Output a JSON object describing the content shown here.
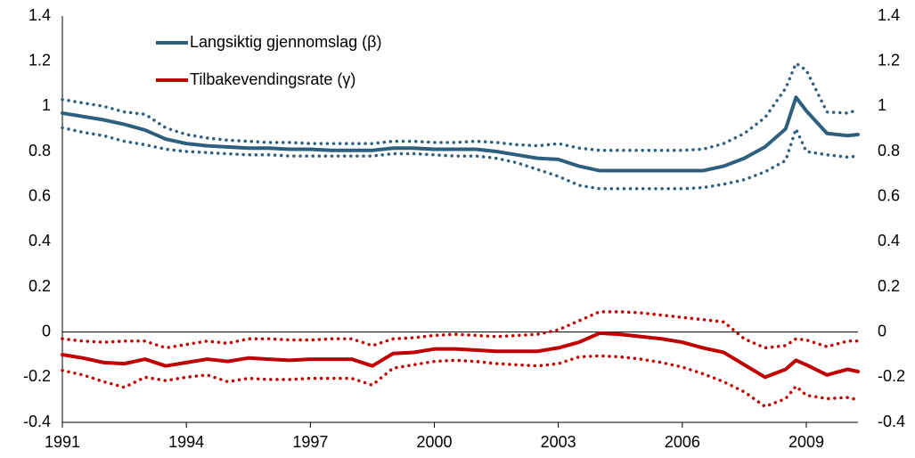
{
  "chart_data": {
    "type": "line",
    "x": [
      1991,
      1991.5,
      1992,
      1992.5,
      1993,
      1993.5,
      1994,
      1994.5,
      1995,
      1995.5,
      1996,
      1996.5,
      1997,
      1997.5,
      1998,
      1998.5,
      1999,
      1999.5,
      2000,
      2000.5,
      2001,
      2001.5,
      2002,
      2002.5,
      2003,
      2003.5,
      2004,
      2004.5,
      2005,
      2005.5,
      2006,
      2006.5,
      2007,
      2007.5,
      2008,
      2008.5,
      2008.75,
      2009,
      2009.5,
      2010,
      2010.25
    ],
    "series": [
      {
        "name": "Langsiktig gjennomslag (β)",
        "color": "#2e5f7f",
        "linestyle": "solid",
        "values": [
          0.97,
          0.955,
          0.94,
          0.92,
          0.895,
          0.855,
          0.835,
          0.825,
          0.82,
          0.815,
          0.815,
          0.81,
          0.81,
          0.805,
          0.805,
          0.805,
          0.815,
          0.815,
          0.81,
          0.81,
          0.81,
          0.8,
          0.785,
          0.77,
          0.765,
          0.735,
          0.715,
          0.715,
          0.715,
          0.715,
          0.715,
          0.715,
          0.735,
          0.77,
          0.82,
          0.9,
          1.04,
          0.98,
          0.88,
          0.87,
          0.875
        ]
      },
      {
        "color": "#2e5f7f",
        "linestyle": "dotted",
        "values": [
          1.03,
          1.015,
          1.0,
          0.975,
          0.965,
          0.905,
          0.875,
          0.86,
          0.85,
          0.845,
          0.84,
          0.84,
          0.835,
          0.835,
          0.835,
          0.835,
          0.845,
          0.845,
          0.84,
          0.84,
          0.845,
          0.84,
          0.83,
          0.825,
          0.835,
          0.815,
          0.805,
          0.805,
          0.805,
          0.805,
          0.805,
          0.81,
          0.835,
          0.88,
          0.95,
          1.08,
          1.19,
          1.16,
          0.975,
          0.97,
          0.985
        ]
      },
      {
        "color": "#2e5f7f",
        "linestyle": "dotted",
        "values": [
          0.905,
          0.885,
          0.87,
          0.845,
          0.83,
          0.81,
          0.8,
          0.795,
          0.79,
          0.785,
          0.785,
          0.78,
          0.78,
          0.78,
          0.78,
          0.78,
          0.79,
          0.79,
          0.785,
          0.78,
          0.78,
          0.77,
          0.75,
          0.72,
          0.69,
          0.65,
          0.635,
          0.635,
          0.635,
          0.635,
          0.635,
          0.64,
          0.655,
          0.675,
          0.71,
          0.76,
          0.9,
          0.8,
          0.785,
          0.775,
          0.78
        ]
      },
      {
        "name": "Tilbakevendingsrate (γ)",
        "color": "#c00000",
        "linestyle": "solid",
        "values": [
          -0.1,
          -0.115,
          -0.135,
          -0.14,
          -0.12,
          -0.15,
          -0.135,
          -0.12,
          -0.13,
          -0.115,
          -0.12,
          -0.125,
          -0.12,
          -0.12,
          -0.12,
          -0.15,
          -0.095,
          -0.09,
          -0.075,
          -0.075,
          -0.08,
          -0.085,
          -0.085,
          -0.085,
          -0.07,
          -0.045,
          -0.005,
          -0.01,
          -0.02,
          -0.03,
          -0.045,
          -0.07,
          -0.09,
          -0.145,
          -0.2,
          -0.165,
          -0.125,
          -0.145,
          -0.19,
          -0.165,
          -0.175
        ]
      },
      {
        "color": "#c00000",
        "linestyle": "dotted",
        "values": [
          -0.03,
          -0.04,
          -0.045,
          -0.04,
          -0.04,
          -0.07,
          -0.055,
          -0.04,
          -0.05,
          -0.03,
          -0.03,
          -0.035,
          -0.035,
          -0.03,
          -0.03,
          -0.06,
          -0.03,
          -0.025,
          -0.015,
          -0.01,
          -0.015,
          -0.02,
          -0.015,
          -0.01,
          0.01,
          0.05,
          0.09,
          0.09,
          0.085,
          0.075,
          0.065,
          0.055,
          0.045,
          -0.03,
          -0.07,
          -0.06,
          -0.03,
          -0.035,
          -0.065,
          -0.04,
          -0.04
        ]
      },
      {
        "color": "#c00000",
        "linestyle": "dotted",
        "values": [
          -0.17,
          -0.19,
          -0.22,
          -0.245,
          -0.2,
          -0.215,
          -0.2,
          -0.19,
          -0.22,
          -0.205,
          -0.21,
          -0.21,
          -0.205,
          -0.205,
          -0.205,
          -0.235,
          -0.16,
          -0.145,
          -0.13,
          -0.125,
          -0.13,
          -0.14,
          -0.145,
          -0.15,
          -0.14,
          -0.11,
          -0.105,
          -0.11,
          -0.12,
          -0.135,
          -0.155,
          -0.185,
          -0.22,
          -0.265,
          -0.33,
          -0.295,
          -0.24,
          -0.28,
          -0.295,
          -0.29,
          -0.3
        ]
      }
    ],
    "xlim": [
      1991,
      2010.25
    ],
    "xticks": [
      1991,
      1994,
      1997,
      2000,
      2003,
      2006,
      2009
    ],
    "ylim": [
      -0.4,
      1.4
    ],
    "yticks": [
      -0.4,
      -0.2,
      0,
      0.2,
      0.4,
      0.6,
      0.8,
      1,
      1.2,
      1.4
    ],
    "y2lim": [
      -0.4,
      1.4
    ],
    "y2ticks": [
      -0.4,
      -0.2,
      0,
      0.2,
      0.4,
      0.6,
      0.8,
      1,
      1.2,
      1.4
    ],
    "legend": "upper left"
  }
}
